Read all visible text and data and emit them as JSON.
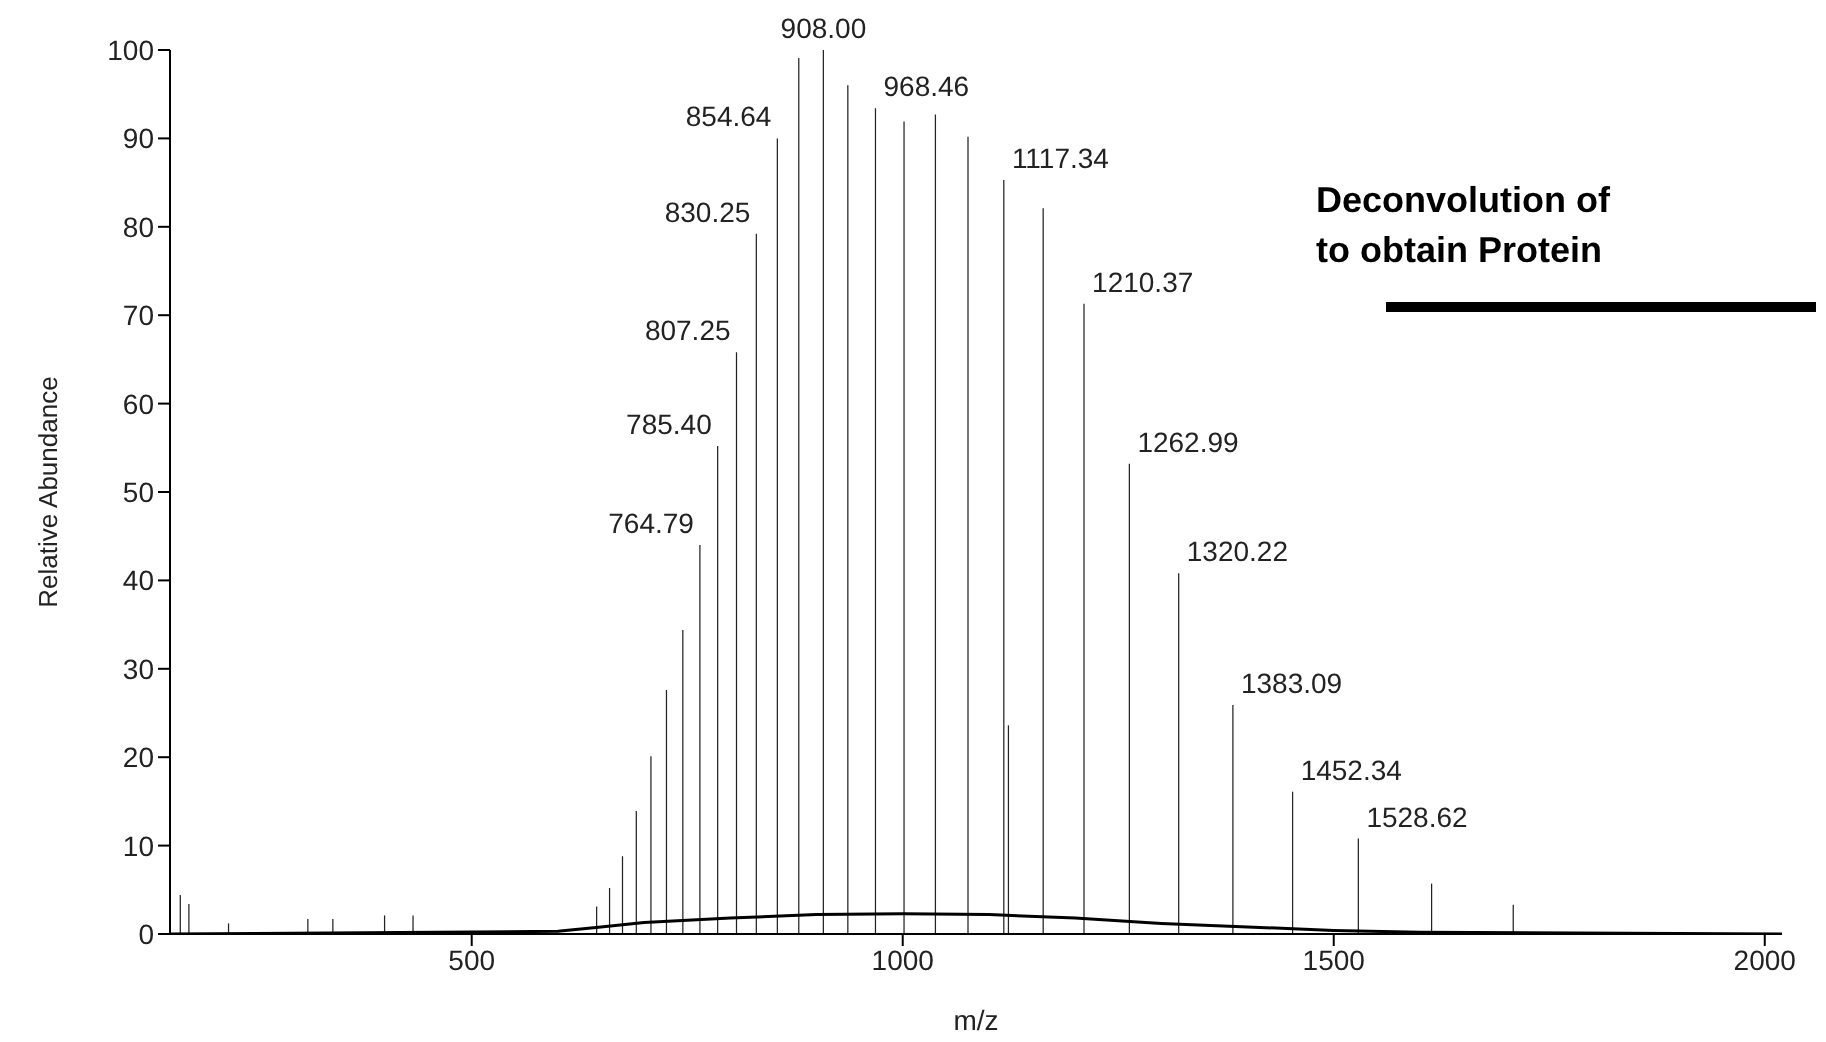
{
  "chart_data": {
    "type": "bar",
    "title": "Deconvolution of\nto obtain Protein",
    "xlabel": "m/z",
    "ylabel": "Relative Abundance",
    "xlim": [
      150,
      2020
    ],
    "xticks": [
      500,
      1000,
      1500,
      2000
    ],
    "ylim": [
      0,
      100
    ],
    "yticks": [
      0,
      10,
      20,
      30,
      40,
      50,
      60,
      70,
      80,
      90,
      100
    ],
    "grid": false,
    "legend": false,
    "annotations": [
      {
        "text": "764.79",
        "x": 764.79,
        "y": 44
      },
      {
        "text": "785.40",
        "x": 785.4,
        "y": 55.2
      },
      {
        "text": "807.25",
        "x": 807.25,
        "y": 65.8
      },
      {
        "text": "830.25",
        "x": 830.25,
        "y": 79.2
      },
      {
        "text": "854.64",
        "x": 854.64,
        "y": 90
      },
      {
        "text": "908.00",
        "x": 908.0,
        "y": 100
      },
      {
        "text": "968.46",
        "x": 968.46,
        "y": 93.4
      },
      {
        "text": "1117.34",
        "x": 1117.34,
        "y": 85.3
      },
      {
        "text": "1210.37",
        "x": 1210.37,
        "y": 71.3
      },
      {
        "text": "1262.99",
        "x": 1262.99,
        "y": 53.2
      },
      {
        "text": "1320.22",
        "x": 1320.22,
        "y": 40.8
      },
      {
        "text": "1383.09",
        "x": 1383.09,
        "y": 25.9
      },
      {
        "text": "1452.34",
        "x": 1452.34,
        "y": 16.1
      },
      {
        "text": "1528.62",
        "x": 1528.62,
        "y": 10.8
      }
    ],
    "series": [
      {
        "color": "#222222",
        "x": [
          162,
          172,
          218,
          310,
          339,
          399,
          432,
          645,
          660,
          675,
          691,
          708,
          726,
          745,
          764.79,
          785.4,
          807.25,
          830.25,
          854.64,
          879.5,
          908.0,
          936.4,
          968.46,
          1001.6,
          1038,
          1075.8,
          1117.34,
          1122.7,
          1163,
          1210.37,
          1262.99,
          1320.22,
          1383.09,
          1452.34,
          1528.62,
          1613.6,
          1708.3
        ],
        "values": [
          4.4,
          3.4,
          1.2,
          1.7,
          1.7,
          2.1,
          2.1,
          3.1,
          5.2,
          8.8,
          13.9,
          20.1,
          27.6,
          34.4,
          44,
          55.2,
          65.8,
          79.2,
          90,
          99.1,
          100,
          96,
          93.4,
          91.9,
          92.7,
          90.2,
          85.3,
          23.6,
          82.1,
          71.3,
          53.2,
          40.8,
          25.9,
          16.1,
          10.8,
          5.7,
          3.3
        ]
      },
      {
        "type": "line",
        "color": "#000000",
        "x": [
          150,
          600,
          650,
          700,
          800,
          900,
          1000,
          1100,
          1200,
          1300,
          1400,
          1500,
          1600,
          2020
        ],
        "values": [
          0,
          0.3,
          0.8,
          1.3,
          1.8,
          2.2,
          2.3,
          2.2,
          1.8,
          1.2,
          0.8,
          0.4,
          0.2,
          0
        ]
      }
    ]
  }
}
